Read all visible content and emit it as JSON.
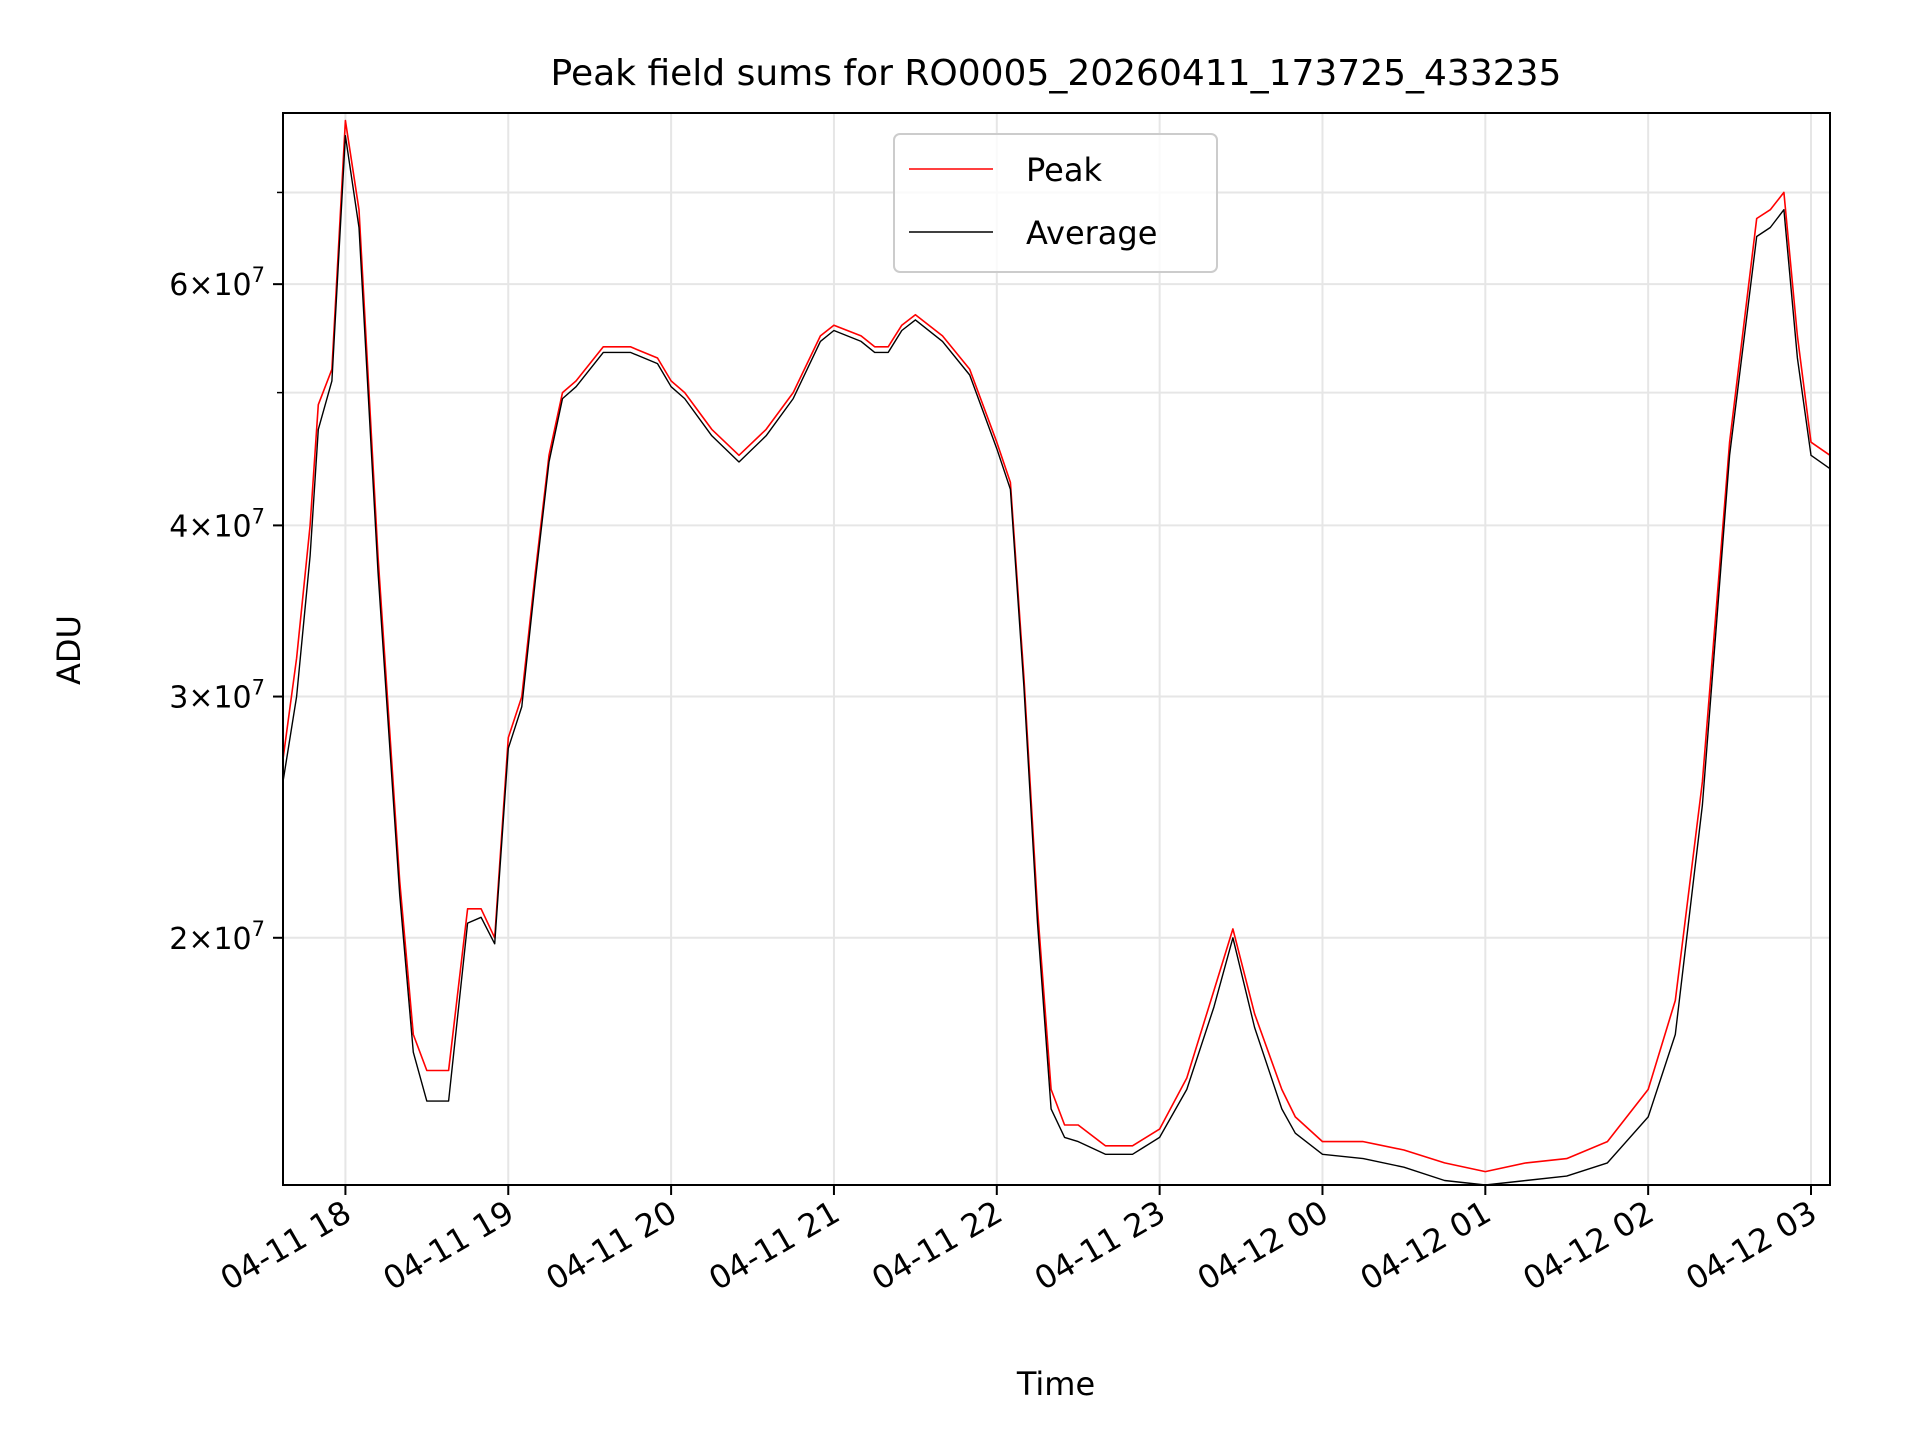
{
  "chart_data": {
    "type": "line",
    "title": "Peak field sums for RO0005_20260411_173725_433235",
    "xlabel": "Time",
    "ylabel": "ADU",
    "y_scale": "log",
    "ylim": [
      13200000,
      80000000
    ],
    "xlim": [
      "04-11 17:37",
      "04-12 03:07"
    ],
    "grid": true,
    "legend_position": "top-center",
    "x_ticks": [
      {
        "t": "04-11 18:00",
        "label": "04-11 18"
      },
      {
        "t": "04-11 19:00",
        "label": "04-11 19"
      },
      {
        "t": "04-11 20:00",
        "label": "04-11 20"
      },
      {
        "t": "04-11 21:00",
        "label": "04-11 21"
      },
      {
        "t": "04-11 22:00",
        "label": "04-11 22"
      },
      {
        "t": "04-11 23:00",
        "label": "04-11 23"
      },
      {
        "t": "04-12 00:00",
        "label": "04-12 00"
      },
      {
        "t": "04-12 01:00",
        "label": "04-12 01"
      },
      {
        "t": "04-12 02:00",
        "label": "04-12 02"
      },
      {
        "t": "04-12 03:00",
        "label": "04-12 03"
      }
    ],
    "y_major_ticks": [
      {
        "value": 20000000,
        "mantissa": "2",
        "exponent": "7"
      },
      {
        "value": 30000000,
        "mantissa": "3",
        "exponent": "7"
      },
      {
        "value": 40000000,
        "mantissa": "4",
        "exponent": "7"
      },
      {
        "value": 60000000,
        "mantissa": "6",
        "exponent": "7"
      }
    ],
    "y_minor_ticks": [
      50000000,
      70000000
    ],
    "series": [
      {
        "name": "Peak",
        "color": "#ff0000",
        "x": [
          "04-11 17:37",
          "04-11 17:42",
          "04-11 17:47",
          "04-11 17:50",
          "04-11 17:55",
          "04-11 18:00",
          "04-11 18:05",
          "04-11 18:12",
          "04-11 18:20",
          "04-11 18:25",
          "04-11 18:30",
          "04-11 18:38",
          "04-11 18:45",
          "04-11 18:50",
          "04-11 18:55",
          "04-11 19:00",
          "04-11 19:05",
          "04-11 19:10",
          "04-11 19:15",
          "04-11 19:20",
          "04-11 19:25",
          "04-11 19:35",
          "04-11 19:45",
          "04-11 19:55",
          "04-11 20:00",
          "04-11 20:05",
          "04-11 20:15",
          "04-11 20:25",
          "04-11 20:35",
          "04-11 20:45",
          "04-11 20:55",
          "04-11 21:00",
          "04-11 21:10",
          "04-11 21:15",
          "04-11 21:20",
          "04-11 21:25",
          "04-11 21:30",
          "04-11 21:40",
          "04-11 21:50",
          "04-11 22:00",
          "04-11 22:05",
          "04-11 22:10",
          "04-11 22:15",
          "04-11 22:20",
          "04-11 22:25",
          "04-11 22:30",
          "04-11 22:40",
          "04-11 22:50",
          "04-11 23:00",
          "04-11 23:10",
          "04-11 23:20",
          "04-11 23:27",
          "04-11 23:35",
          "04-11 23:45",
          "04-11 23:50",
          "04-12 00:00",
          "04-12 00:15",
          "04-12 00:30",
          "04-12 00:45",
          "04-12 01:00",
          "04-12 01:15",
          "04-12 01:30",
          "04-12 01:45",
          "04-12 02:00",
          "04-12 02:10",
          "04-12 02:20",
          "04-12 02:30",
          "04-12 02:40",
          "04-12 02:45",
          "04-12 02:50",
          "04-12 02:55",
          "04-12 03:00",
          "04-12 03:07"
        ],
        "values": [
          27000000,
          32000000,
          40000000,
          49000000,
          52000000,
          79000000,
          68000000,
          38000000,
          22000000,
          17000000,
          16000000,
          16000000,
          21000000,
          21000000,
          20000000,
          28000000,
          30000000,
          37000000,
          45000000,
          50000000,
          51000000,
          54000000,
          54000000,
          53000000,
          51000000,
          50000000,
          47000000,
          45000000,
          47000000,
          50000000,
          55000000,
          56000000,
          55000000,
          54000000,
          54000000,
          56000000,
          57000000,
          55000000,
          52000000,
          46000000,
          43000000,
          31000000,
          21000000,
          15500000,
          14600000,
          14600000,
          14100000,
          14100000,
          14500000,
          15800000,
          18300000,
          20300000,
          17600000,
          15500000,
          14800000,
          14200000,
          14200000,
          14000000,
          13700000,
          13500000,
          13700000,
          13800000,
          14200000,
          15500000,
          18000000,
          26000000,
          46000000,
          67000000,
          68000000,
          70000000,
          55000000,
          46000000,
          45000000
        ]
      },
      {
        "name": "Average",
        "color": "#000000",
        "x": [
          "04-11 17:37",
          "04-11 17:42",
          "04-11 17:47",
          "04-11 17:50",
          "04-11 17:55",
          "04-11 18:00",
          "04-11 18:05",
          "04-11 18:12",
          "04-11 18:20",
          "04-11 18:25",
          "04-11 18:30",
          "04-11 18:38",
          "04-11 18:45",
          "04-11 18:50",
          "04-11 18:55",
          "04-11 19:00",
          "04-11 19:05",
          "04-11 19:10",
          "04-11 19:15",
          "04-11 19:20",
          "04-11 19:25",
          "04-11 19:35",
          "04-11 19:45",
          "04-11 19:55",
          "04-11 20:00",
          "04-11 20:05",
          "04-11 20:15",
          "04-11 20:25",
          "04-11 20:35",
          "04-11 20:45",
          "04-11 20:55",
          "04-11 21:00",
          "04-11 21:10",
          "04-11 21:15",
          "04-11 21:20",
          "04-11 21:25",
          "04-11 21:30",
          "04-11 21:40",
          "04-11 21:50",
          "04-11 22:00",
          "04-11 22:05",
          "04-11 22:10",
          "04-11 22:15",
          "04-11 22:20",
          "04-11 22:25",
          "04-11 22:30",
          "04-11 22:40",
          "04-11 22:50",
          "04-11 23:00",
          "04-11 23:10",
          "04-11 23:20",
          "04-11 23:27",
          "04-11 23:35",
          "04-11 23:45",
          "04-11 23:50",
          "04-12 00:00",
          "04-12 00:15",
          "04-12 00:30",
          "04-12 00:45",
          "04-12 01:00",
          "04-12 01:15",
          "04-12 01:30",
          "04-12 01:45",
          "04-12 02:00",
          "04-12 02:10",
          "04-12 02:20",
          "04-12 02:30",
          "04-12 02:40",
          "04-12 02:45",
          "04-12 02:50",
          "04-12 02:55",
          "04-12 03:00",
          "04-12 03:07"
        ],
        "values": [
          26000000,
          30000000,
          38000000,
          47000000,
          51000000,
          77000000,
          66000000,
          37000000,
          21500000,
          16500000,
          15200000,
          15200000,
          20500000,
          20700000,
          19800000,
          27500000,
          29500000,
          36500000,
          44500000,
          49500000,
          50500000,
          53500000,
          53500000,
          52500000,
          50500000,
          49500000,
          46500000,
          44500000,
          46500000,
          49500000,
          54500000,
          55500000,
          54500000,
          53500000,
          53500000,
          55500000,
          56500000,
          54500000,
          51500000,
          45500000,
          42500000,
          30500000,
          20500000,
          15000000,
          14300000,
          14200000,
          13900000,
          13900000,
          14300000,
          15500000,
          17800000,
          20000000,
          17200000,
          15000000,
          14400000,
          13900000,
          13800000,
          13600000,
          13300000,
          13200000,
          13300000,
          13400000,
          13700000,
          14800000,
          17000000,
          25000000,
          45000000,
          65000000,
          66000000,
          68000000,
          53000000,
          45000000,
          44000000
        ]
      }
    ]
  }
}
